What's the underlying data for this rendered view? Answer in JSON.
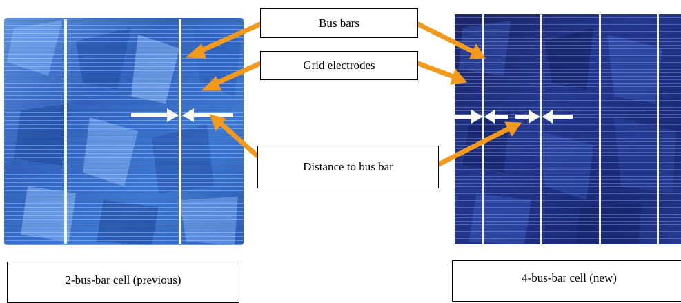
{
  "labels": {
    "bus_bars": "Bus bars",
    "grid_electrodes": "Grid electrodes",
    "distance_to_bus_bar": "Distance to bus bar",
    "left_cell": "2-bus-bar cell (previous)",
    "right_cell": "4-bus-bar cell (new)"
  },
  "cells": {
    "left": {
      "bus_bar_count": 2
    },
    "right": {
      "bus_bar_count": 4
    }
  },
  "colors": {
    "arrow_orange": "#f39a1c",
    "left_cell_blue": "#3a73c8",
    "right_cell_blue": "#1c2f84",
    "bus_bar_white": "#ffffff"
  }
}
